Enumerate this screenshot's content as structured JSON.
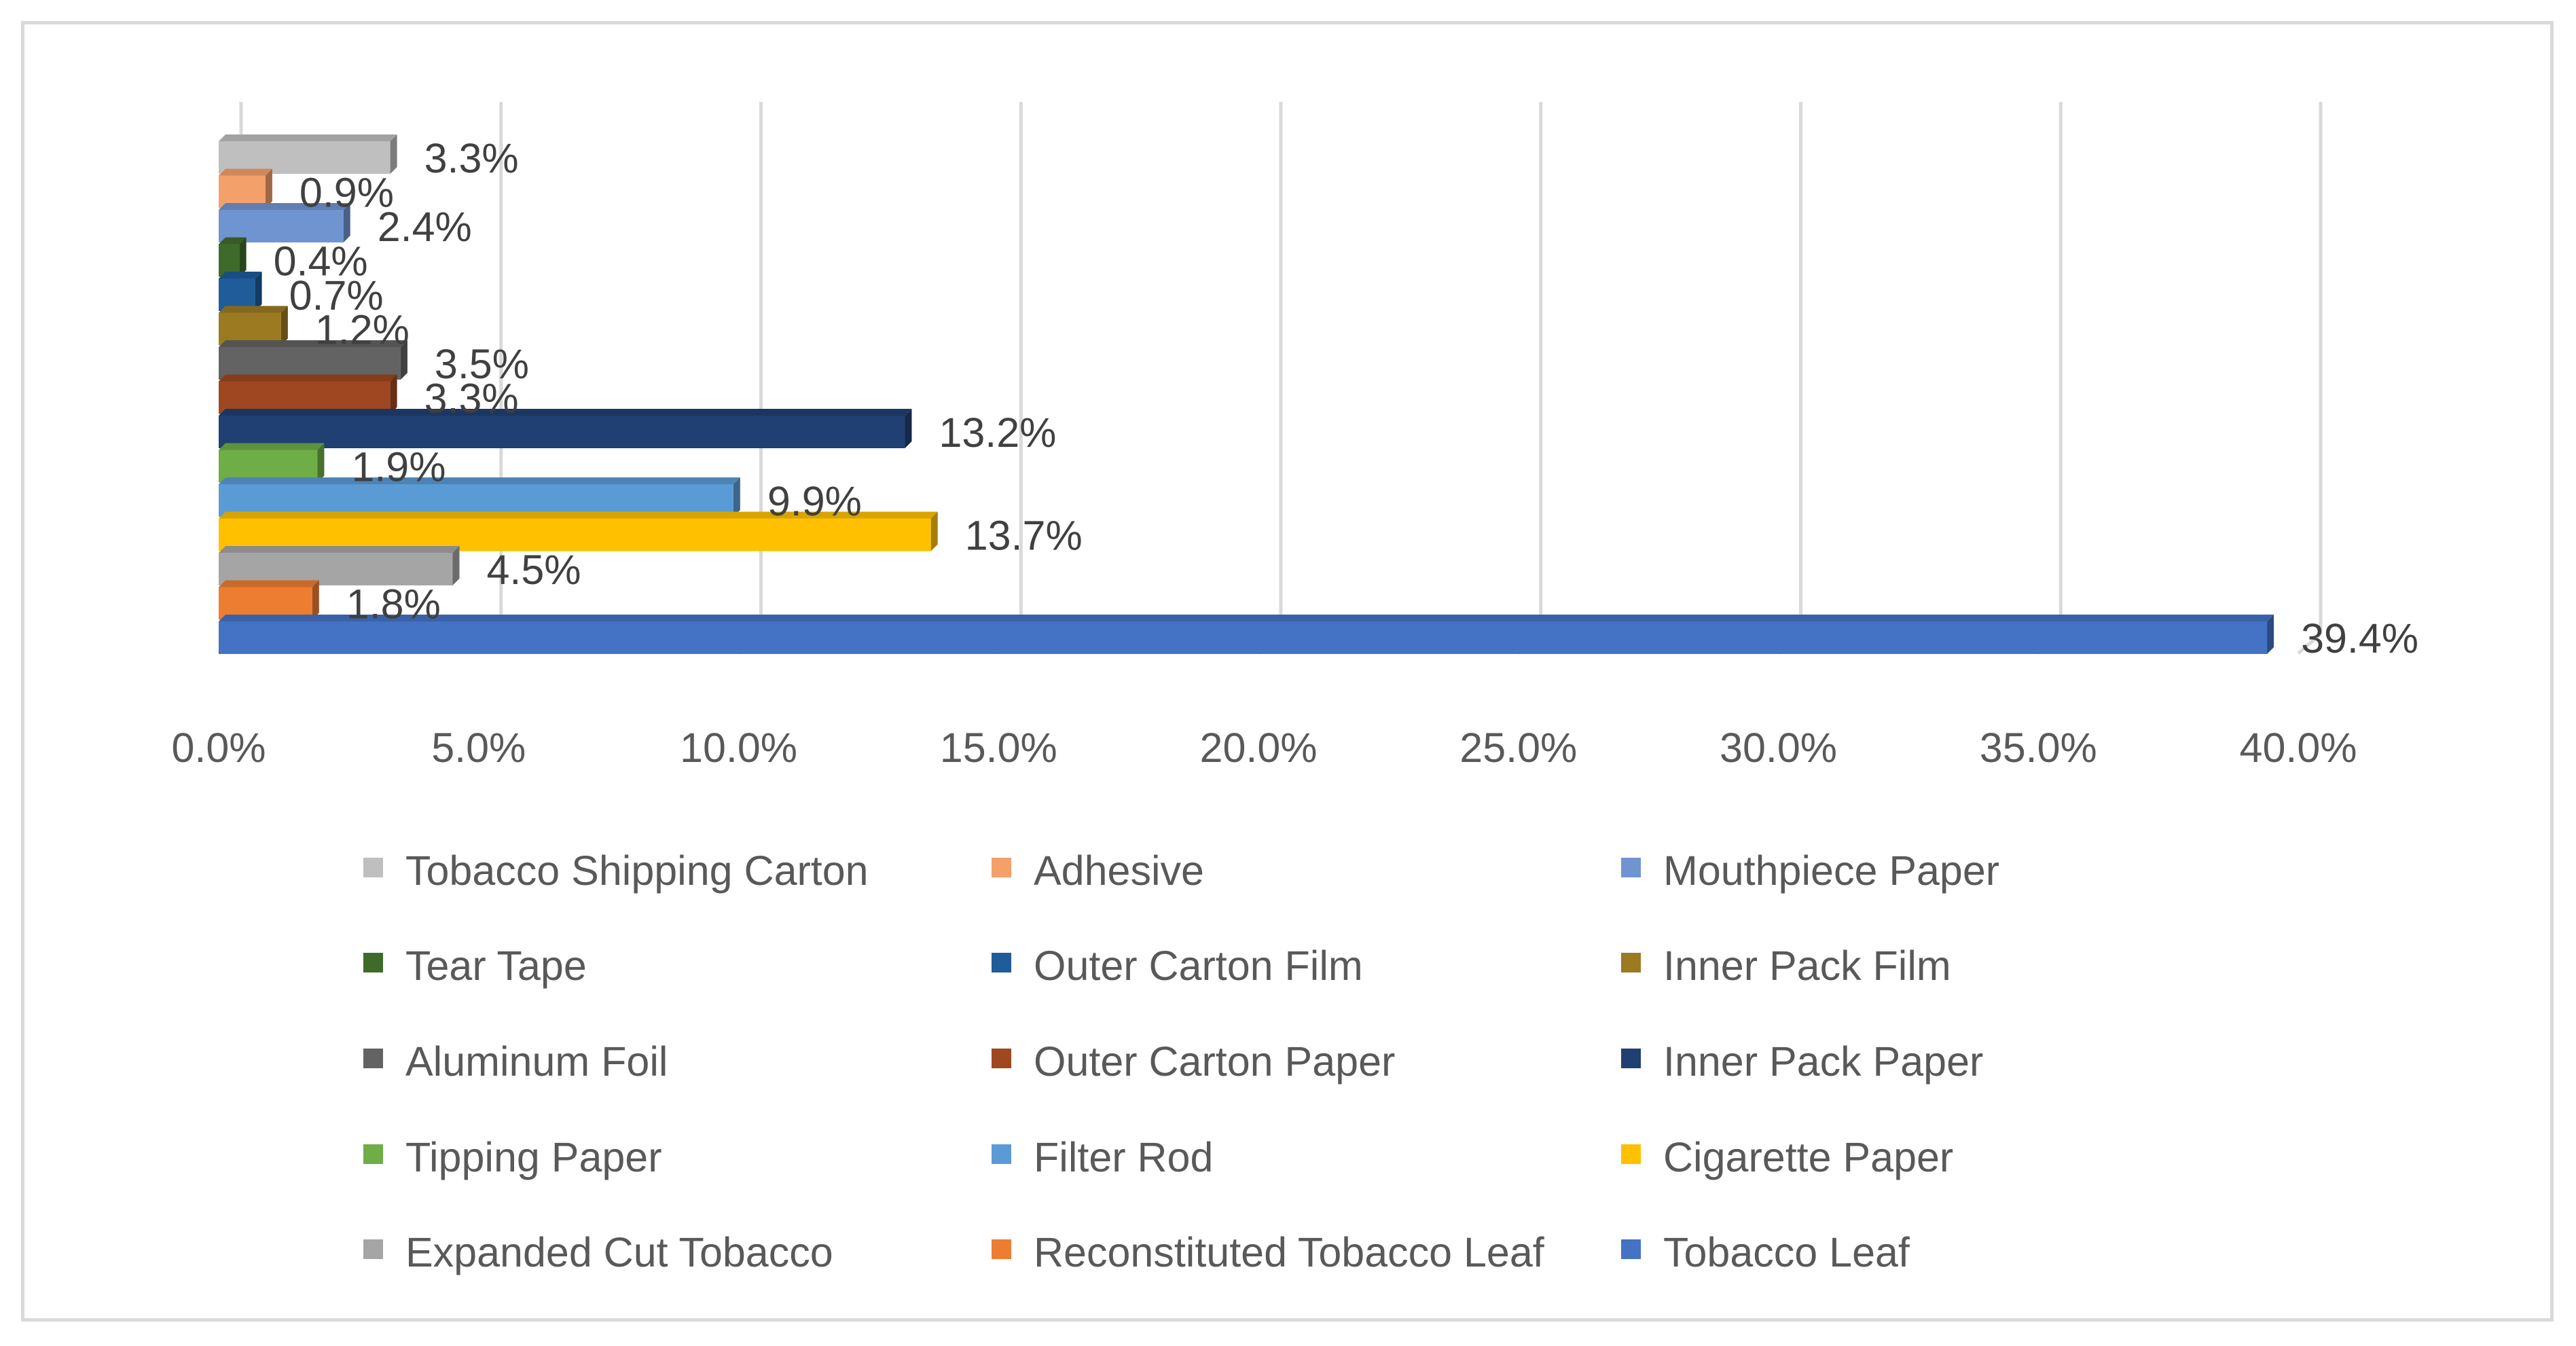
{
  "chart_data": {
    "type": "bar",
    "orientation": "horizontal",
    "style": "3d",
    "title": "",
    "xlabel": "",
    "ylabel": "",
    "xlim": [
      0,
      40
    ],
    "x_ticks": [
      "0.0%",
      "5.0%",
      "10.0%",
      "15.0%",
      "20.0%",
      "25.0%",
      "30.0%",
      "35.0%",
      "40.0%"
    ],
    "grid": true,
    "legend_position": "bottom",
    "series": [
      {
        "name": "Tobacco Shipping Carton",
        "value": 3.3,
        "label": "3.3%",
        "color": "#bfbfbf"
      },
      {
        "name": "Adhesive",
        "value": 0.9,
        "label": "0.9%",
        "color": "#f4a06a"
      },
      {
        "name": "Mouthpiece Paper",
        "value": 2.4,
        "label": "2.4%",
        "color": "#7094d0"
      },
      {
        "name": "Tear Tape",
        "value": 0.4,
        "label": "0.4%",
        "color": "#3f6b2a"
      },
      {
        "name": "Outer Carton Film",
        "value": 0.7,
        "label": "0.7%",
        "color": "#1f5c99"
      },
      {
        "name": "Inner Pack Film",
        "value": 1.2,
        "label": "1.2%",
        "color": "#9c7a22"
      },
      {
        "name": "Aluminum Foil",
        "value": 3.5,
        "label": "3.5%",
        "color": "#636363"
      },
      {
        "name": "Outer Carton Paper",
        "value": 3.3,
        "label": "3.3%",
        "color": "#9e4720"
      },
      {
        "name": "Inner Pack Paper",
        "value": 13.2,
        "label": "13.2%",
        "color": "#203f72"
      },
      {
        "name": "Tipping Paper",
        "value": 1.9,
        "label": "1.9%",
        "color": "#6fad47"
      },
      {
        "name": "Filter Rod",
        "value": 9.9,
        "label": "9.9%",
        "color": "#5b9bd5"
      },
      {
        "name": "Cigarette Paper",
        "value": 13.7,
        "label": "13.7%",
        "color": "#ffc000"
      },
      {
        "name": "Expanded Cut Tobacco",
        "value": 4.5,
        "label": "4.5%",
        "color": "#a5a5a5"
      },
      {
        "name": "Reconstituted Tobacco Leaf",
        "value": 1.8,
        "label": "1.8%",
        "color": "#ed7d31"
      },
      {
        "name": "Tobacco Leaf",
        "value": 39.4,
        "label": "39.4%",
        "color": "#4472c4"
      }
    ]
  }
}
